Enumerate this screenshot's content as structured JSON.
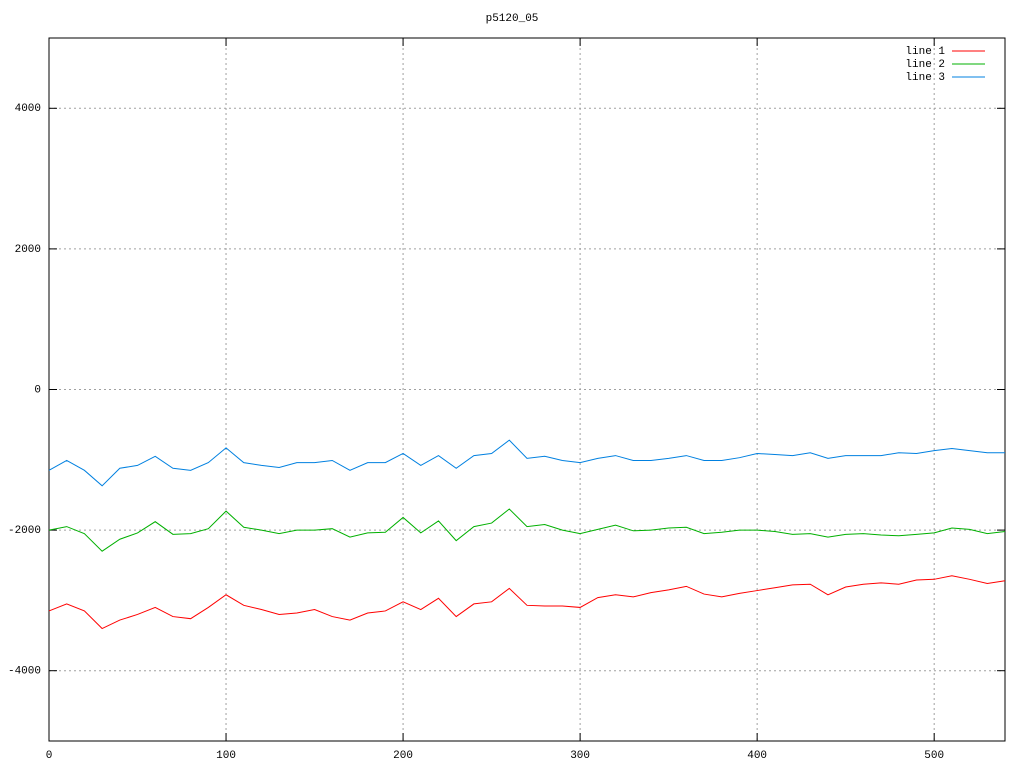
{
  "chart_data": {
    "type": "line",
    "title": "p5120_05",
    "x": [
      0,
      10,
      20,
      30,
      40,
      50,
      60,
      70,
      80,
      90,
      100,
      110,
      120,
      130,
      140,
      150,
      160,
      170,
      180,
      190,
      200,
      210,
      220,
      230,
      240,
      250,
      260,
      270,
      280,
      290,
      300,
      310,
      320,
      330,
      340,
      350,
      360,
      370,
      380,
      390,
      400,
      410,
      420,
      430,
      440,
      450,
      460,
      470,
      480,
      490,
      500,
      510,
      520,
      530,
      540
    ],
    "series": [
      {
        "name": "line 1",
        "color": "#ff0000",
        "values": [
          -3150,
          -3050,
          -3150,
          -3400,
          -3280,
          -3200,
          -3100,
          -3230,
          -3260,
          -3100,
          -2920,
          -3070,
          -3130,
          -3200,
          -3180,
          -3130,
          -3230,
          -3280,
          -3180,
          -3150,
          -3020,
          -3130,
          -2970,
          -3230,
          -3050,
          -3020,
          -2830,
          -3070,
          -3080,
          -3080,
          -3100,
          -2960,
          -2920,
          -2950,
          -2890,
          -2850,
          -2800,
          -2910,
          -2950,
          -2900,
          -2860,
          -2820,
          -2780,
          -2770,
          -2920,
          -2810,
          -2770,
          -2750,
          -2770,
          -2710,
          -2700,
          -2650,
          -2700,
          -2760,
          -2720
        ]
      },
      {
        "name": "line 2",
        "color": "#00b000",
        "values": [
          -2000,
          -1950,
          -2050,
          -2300,
          -2130,
          -2040,
          -1880,
          -2060,
          -2050,
          -1980,
          -1730,
          -1960,
          -2000,
          -2050,
          -2000,
          -2000,
          -1980,
          -2100,
          -2040,
          -2030,
          -1820,
          -2040,
          -1870,
          -2150,
          -1950,
          -1900,
          -1700,
          -1950,
          -1920,
          -2000,
          -2050,
          -1990,
          -1930,
          -2010,
          -2000,
          -1970,
          -1960,
          -2050,
          -2030,
          -2000,
          -2000,
          -2020,
          -2060,
          -2050,
          -2100,
          -2060,
          -2050,
          -2070,
          -2080,
          -2060,
          -2040,
          -1970,
          -1990,
          -2050,
          -2020
        ]
      },
      {
        "name": "line 3",
        "color": "#0080e0",
        "values": [
          -1150,
          -1010,
          -1150,
          -1370,
          -1120,
          -1080,
          -950,
          -1120,
          -1150,
          -1040,
          -830,
          -1040,
          -1080,
          -1110,
          -1040,
          -1040,
          -1010,
          -1150,
          -1040,
          -1040,
          -910,
          -1080,
          -940,
          -1120,
          -940,
          -910,
          -720,
          -980,
          -950,
          -1010,
          -1040,
          -980,
          -940,
          -1010,
          -1010,
          -980,
          -940,
          -1010,
          -1010,
          -970,
          -910,
          -925,
          -940,
          -900,
          -980,
          -940,
          -940,
          -940,
          -900,
          -910,
          -870,
          -840,
          -870,
          -900,
          -900
        ]
      }
    ],
    "xlim": [
      0,
      540
    ],
    "xticks": [
      0,
      100,
      200,
      300,
      400,
      500
    ],
    "ylim": [
      -5000,
      5000
    ],
    "yticks": [
      -4000,
      -2000,
      0,
      2000,
      4000
    ],
    "grid": true,
    "legend": "top-right"
  }
}
